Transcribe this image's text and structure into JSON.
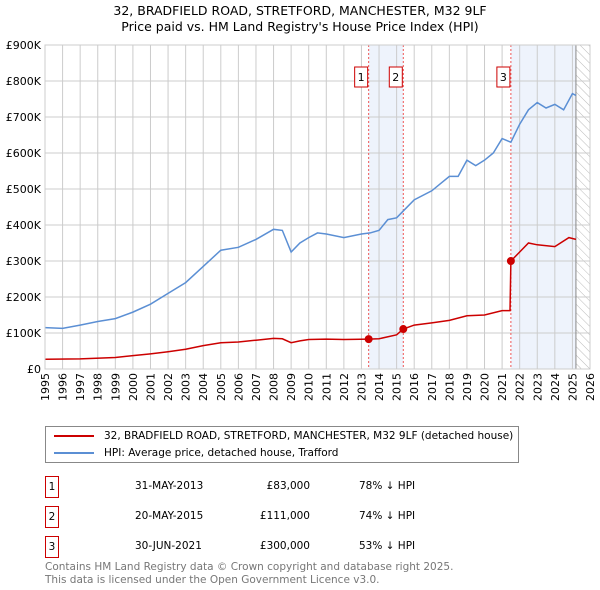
{
  "chart_data": {
    "type": "line",
    "title": "32, BRADFIELD ROAD, STRETFORD, MANCHESTER, M32 9LF",
    "subtitle": "Price paid vs. HM Land Registry's House Price Index (HPI)",
    "xlim": [
      1995,
      2026
    ],
    "ylim": [
      0,
      900000
    ],
    "x_ticks": [
      "1995",
      "1996",
      "1997",
      "1998",
      "1999",
      "2000",
      "2001",
      "2002",
      "2003",
      "2004",
      "2005",
      "2006",
      "2007",
      "2008",
      "2009",
      "2010",
      "2011",
      "2012",
      "2013",
      "2014",
      "2015",
      "2016",
      "2017",
      "2018",
      "2019",
      "2020",
      "2021",
      "2022",
      "2023",
      "2024",
      "2025",
      "2026"
    ],
    "y_ticks": [
      {
        "v": 0,
        "label": "£0"
      },
      {
        "v": 100000,
        "label": "£100K"
      },
      {
        "v": 200000,
        "label": "£200K"
      },
      {
        "v": 300000,
        "label": "£300K"
      },
      {
        "v": 400000,
        "label": "£400K"
      },
      {
        "v": 500000,
        "label": "£500K"
      },
      {
        "v": 600000,
        "label": "£600K"
      },
      {
        "v": 700000,
        "label": "£700K"
      },
      {
        "v": 800000,
        "label": "£800K"
      },
      {
        "v": 900000,
        "label": "£900K"
      }
    ],
    "grid": true,
    "shaded": [
      [
        2013.41,
        2015.38
      ],
      [
        2021.5,
        2025.2
      ]
    ],
    "forecast_start": 2025.2,
    "series": [
      {
        "name": "32, BRADFIELD ROAD, STRETFORD, MANCHESTER, M32 9LF (detached house)",
        "color": "#cc0000",
        "points": [
          [
            1995,
            27000
          ],
          [
            1997,
            28000
          ],
          [
            1999,
            32000
          ],
          [
            2000,
            37000
          ],
          [
            2001,
            42000
          ],
          [
            2002,
            48000
          ],
          [
            2003,
            55000
          ],
          [
            2004,
            65000
          ],
          [
            2005,
            73000
          ],
          [
            2006,
            75000
          ],
          [
            2007,
            80000
          ],
          [
            2008,
            85000
          ],
          [
            2008.5,
            84000
          ],
          [
            2009,
            73000
          ],
          [
            2009.5,
            78000
          ],
          [
            2010,
            82000
          ],
          [
            2011,
            83000
          ],
          [
            2012,
            82000
          ],
          [
            2013.41,
            83000
          ],
          [
            2014,
            84000
          ],
          [
            2015,
            95000
          ],
          [
            2015.38,
            111000
          ],
          [
            2016,
            122000
          ],
          [
            2017,
            128000
          ],
          [
            2018,
            135000
          ],
          [
            2019,
            148000
          ],
          [
            2020,
            150000
          ],
          [
            2021,
            162000
          ],
          [
            2021.45,
            162000
          ],
          [
            2021.5,
            300000
          ],
          [
            2022,
            325000
          ],
          [
            2022.5,
            350000
          ],
          [
            2023,
            345000
          ],
          [
            2024,
            340000
          ],
          [
            2024.8,
            365000
          ],
          [
            2025.2,
            360000
          ]
        ]
      },
      {
        "name": "HPI: Average price, detached house, Trafford",
        "color": "#5b8fd4",
        "points": [
          [
            1995,
            115000
          ],
          [
            1996,
            113000
          ],
          [
            1997,
            122000
          ],
          [
            1998,
            132000
          ],
          [
            1999,
            140000
          ],
          [
            2000,
            158000
          ],
          [
            2001,
            180000
          ],
          [
            2002,
            210000
          ],
          [
            2003,
            240000
          ],
          [
            2004,
            285000
          ],
          [
            2005,
            330000
          ],
          [
            2006,
            338000
          ],
          [
            2007,
            360000
          ],
          [
            2008,
            388000
          ],
          [
            2008.5,
            385000
          ],
          [
            2009,
            325000
          ],
          [
            2009.5,
            350000
          ],
          [
            2010,
            365000
          ],
          [
            2010.5,
            378000
          ],
          [
            2011,
            375000
          ],
          [
            2012,
            365000
          ],
          [
            2013,
            375000
          ],
          [
            2013.5,
            378000
          ],
          [
            2014,
            385000
          ],
          [
            2014.5,
            415000
          ],
          [
            2015,
            420000
          ],
          [
            2015.5,
            445000
          ],
          [
            2016,
            470000
          ],
          [
            2017,
            495000
          ],
          [
            2017.5,
            515000
          ],
          [
            2018,
            535000
          ],
          [
            2018.5,
            535000
          ],
          [
            2019,
            580000
          ],
          [
            2019.5,
            565000
          ],
          [
            2020,
            580000
          ],
          [
            2020.5,
            600000
          ],
          [
            2021,
            640000
          ],
          [
            2021.5,
            630000
          ],
          [
            2022,
            680000
          ],
          [
            2022.5,
            720000
          ],
          [
            2023,
            740000
          ],
          [
            2023.5,
            725000
          ],
          [
            2024,
            735000
          ],
          [
            2024.5,
            720000
          ],
          [
            2025,
            765000
          ],
          [
            2025.2,
            760000
          ]
        ]
      }
    ],
    "sales": [
      {
        "label": "1",
        "x": 2013.41,
        "y": 83000,
        "date": "31-MAY-2013",
        "price": "£83,000",
        "hpi": "78% ↓ HPI"
      },
      {
        "label": "2",
        "x": 2015.38,
        "y": 111000,
        "date": "20-MAY-2015",
        "price": "£111,000",
        "hpi": "74% ↓ HPI"
      },
      {
        "label": "3",
        "x": 2021.5,
        "y": 300000,
        "date": "30-JUN-2021",
        "price": "£300,000",
        "hpi": "53% ↓ HPI"
      }
    ]
  },
  "footer": {
    "line1": "Contains HM Land Registry data © Crown copyright and database right 2025.",
    "line2": "This data is licensed under the Open Government Licence v3.0."
  }
}
